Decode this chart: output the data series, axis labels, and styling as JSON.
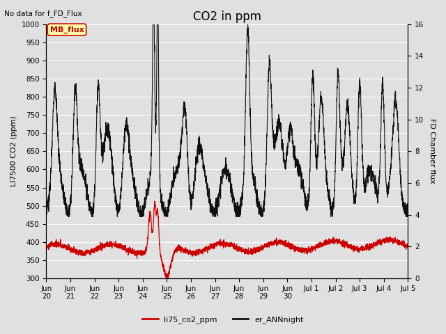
{
  "title": "CO2 in ppm",
  "top_left_text": "No data for f_FD_Flux",
  "ylabel_left": "LI7500 CO2 (ppm)",
  "ylabel_right": "FD Chamber flux",
  "ylim_left": [
    300,
    1000
  ],
  "ylim_right": [
    0,
    16
  ],
  "yticks_left": [
    300,
    350,
    400,
    450,
    500,
    550,
    600,
    650,
    700,
    750,
    800,
    850,
    900,
    950,
    1000
  ],
  "yticks_right": [
    0,
    2,
    4,
    6,
    8,
    10,
    12,
    14,
    16
  ],
  "bg_color": "#e0e0e0",
  "plot_bg_color": "#e0e0e0",
  "grid_color": "white",
  "line1_color": "#cc0000",
  "line2_color": "#111111",
  "legend_labels": [
    "li75_co2_ppm",
    "er_ANNnight"
  ],
  "legend_colors": [
    "#cc0000",
    "#111111"
  ],
  "mb_flux_box_color": "#ffffaa",
  "mb_flux_text_color": "#cc0000",
  "mb_flux_label": "MB_flux",
  "title_fontsize": 12,
  "label_fontsize": 8,
  "tick_fontsize": 7.5
}
